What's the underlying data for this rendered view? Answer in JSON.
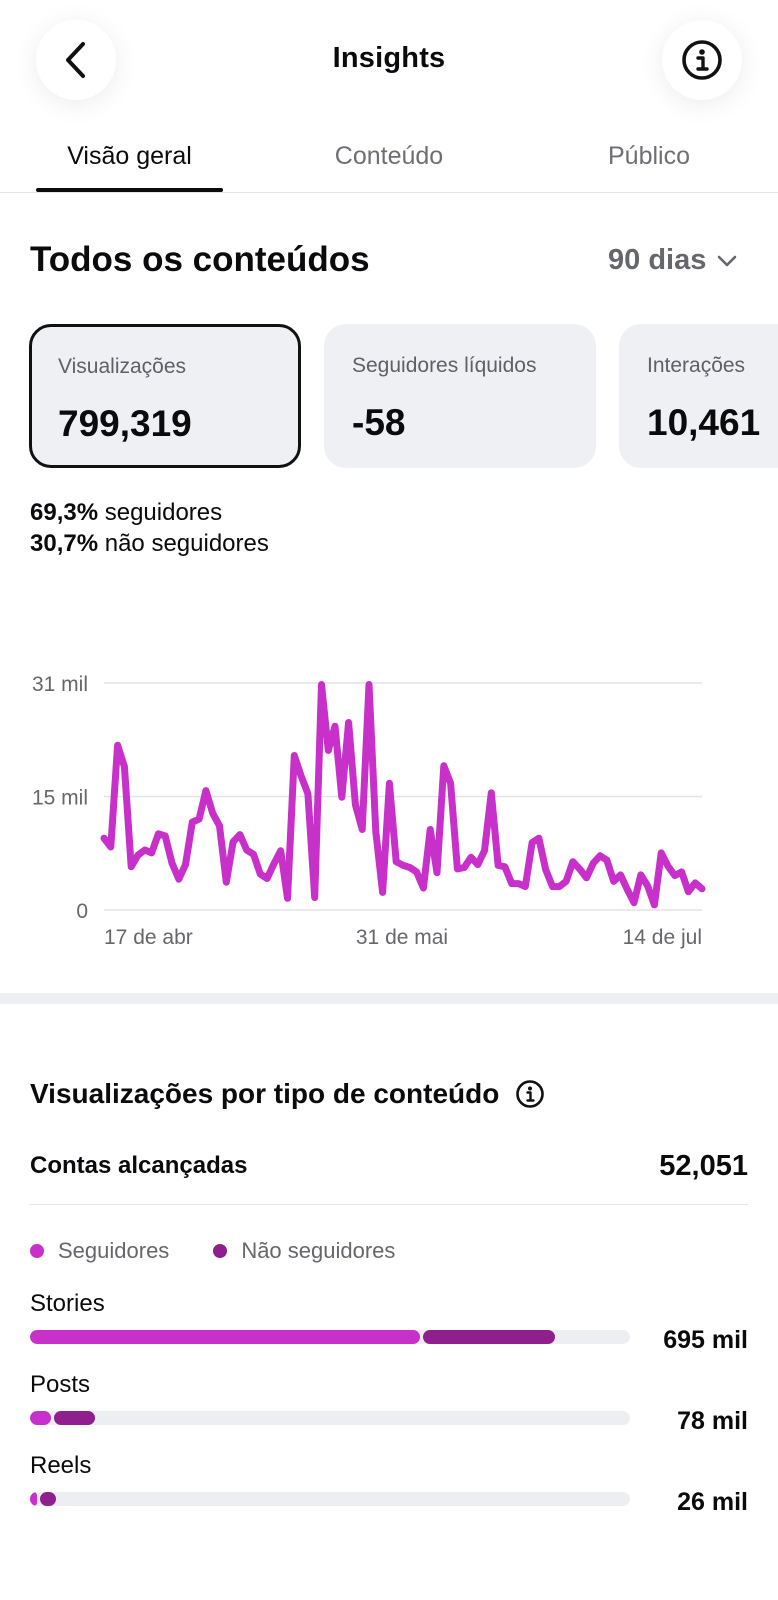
{
  "header": {
    "title": "Insights"
  },
  "tabs": [
    {
      "label": "Visão geral",
      "active": true
    },
    {
      "label": "Conteúdo",
      "active": false
    },
    {
      "label": "Público",
      "active": false
    }
  ],
  "section": {
    "title": "Todos os conteúdos",
    "range": "90 dias"
  },
  "cards": [
    {
      "label": "Visualizações",
      "value": "799,319",
      "selected": true
    },
    {
      "label": "Seguidores líquidos",
      "value": "-58",
      "selected": false
    },
    {
      "label": "Interações",
      "value": "10,461",
      "selected": false
    }
  ],
  "breakdown": [
    {
      "pct": "69,3%",
      "text": "seguidores"
    },
    {
      "pct": "30,7%",
      "text": "não seguidores"
    }
  ],
  "colors": {
    "accent": "#c730c9",
    "dark_accent": "#8e1f8c",
    "track": "#eceef2",
    "grid": "#e4e4e8"
  },
  "chart_data": {
    "type": "line",
    "y_ticks": [
      "31 mil",
      "15 mil",
      "0"
    ],
    "x_ticks": [
      "17 de abr",
      "31 de mai",
      "14 de jul"
    ],
    "ylim": [
      0,
      31000
    ],
    "series": [
      {
        "color": "#c730c9",
        "values": [
          9800,
          8600,
          22500,
          19600,
          5900,
          7500,
          8200,
          7800,
          10400,
          10100,
          6400,
          4200,
          6200,
          12000,
          12400,
          16300,
          13200,
          11500,
          3800,
          9300,
          10300,
          8200,
          7600,
          4900,
          4300,
          6300,
          8100,
          1600,
          21100,
          18300,
          15900,
          1700,
          30800,
          21800,
          25100,
          15400,
          25600,
          14400,
          11000,
          30800,
          10700,
          2400,
          17300,
          6600,
          6100,
          5800,
          5200,
          3000,
          11000,
          5100,
          19700,
          17300,
          5600,
          5800,
          7200,
          6200,
          8100,
          16000,
          6100,
          5900,
          3600,
          3600,
          3200,
          9200,
          9800,
          5500,
          3200,
          3200,
          3900,
          6600,
          5600,
          4400,
          6400,
          7400,
          6800,
          3900,
          4800,
          2800,
          1000,
          4800,
          3300,
          700,
          7800,
          6000,
          4700,
          5200,
          2500,
          3700,
          2900
        ]
      }
    ]
  },
  "content_views": {
    "title": "Visualizações por tipo de conteúdo",
    "reach_label": "Contas alcançadas",
    "reach_value": "52,051",
    "legend": [
      "Seguidores",
      "Não seguidores"
    ],
    "rows": [
      {
        "label": "Stories",
        "value": "695 mil",
        "followers_frac": 0.65,
        "nonfollowers_frac": 0.22
      },
      {
        "label": "Posts",
        "value": "78 mil",
        "followers_frac": 0.035,
        "nonfollowers_frac": 0.068
      },
      {
        "label": "Reels",
        "value": "26 mil",
        "followers_frac": 0.012,
        "nonfollowers_frac": 0.026
      }
    ]
  }
}
